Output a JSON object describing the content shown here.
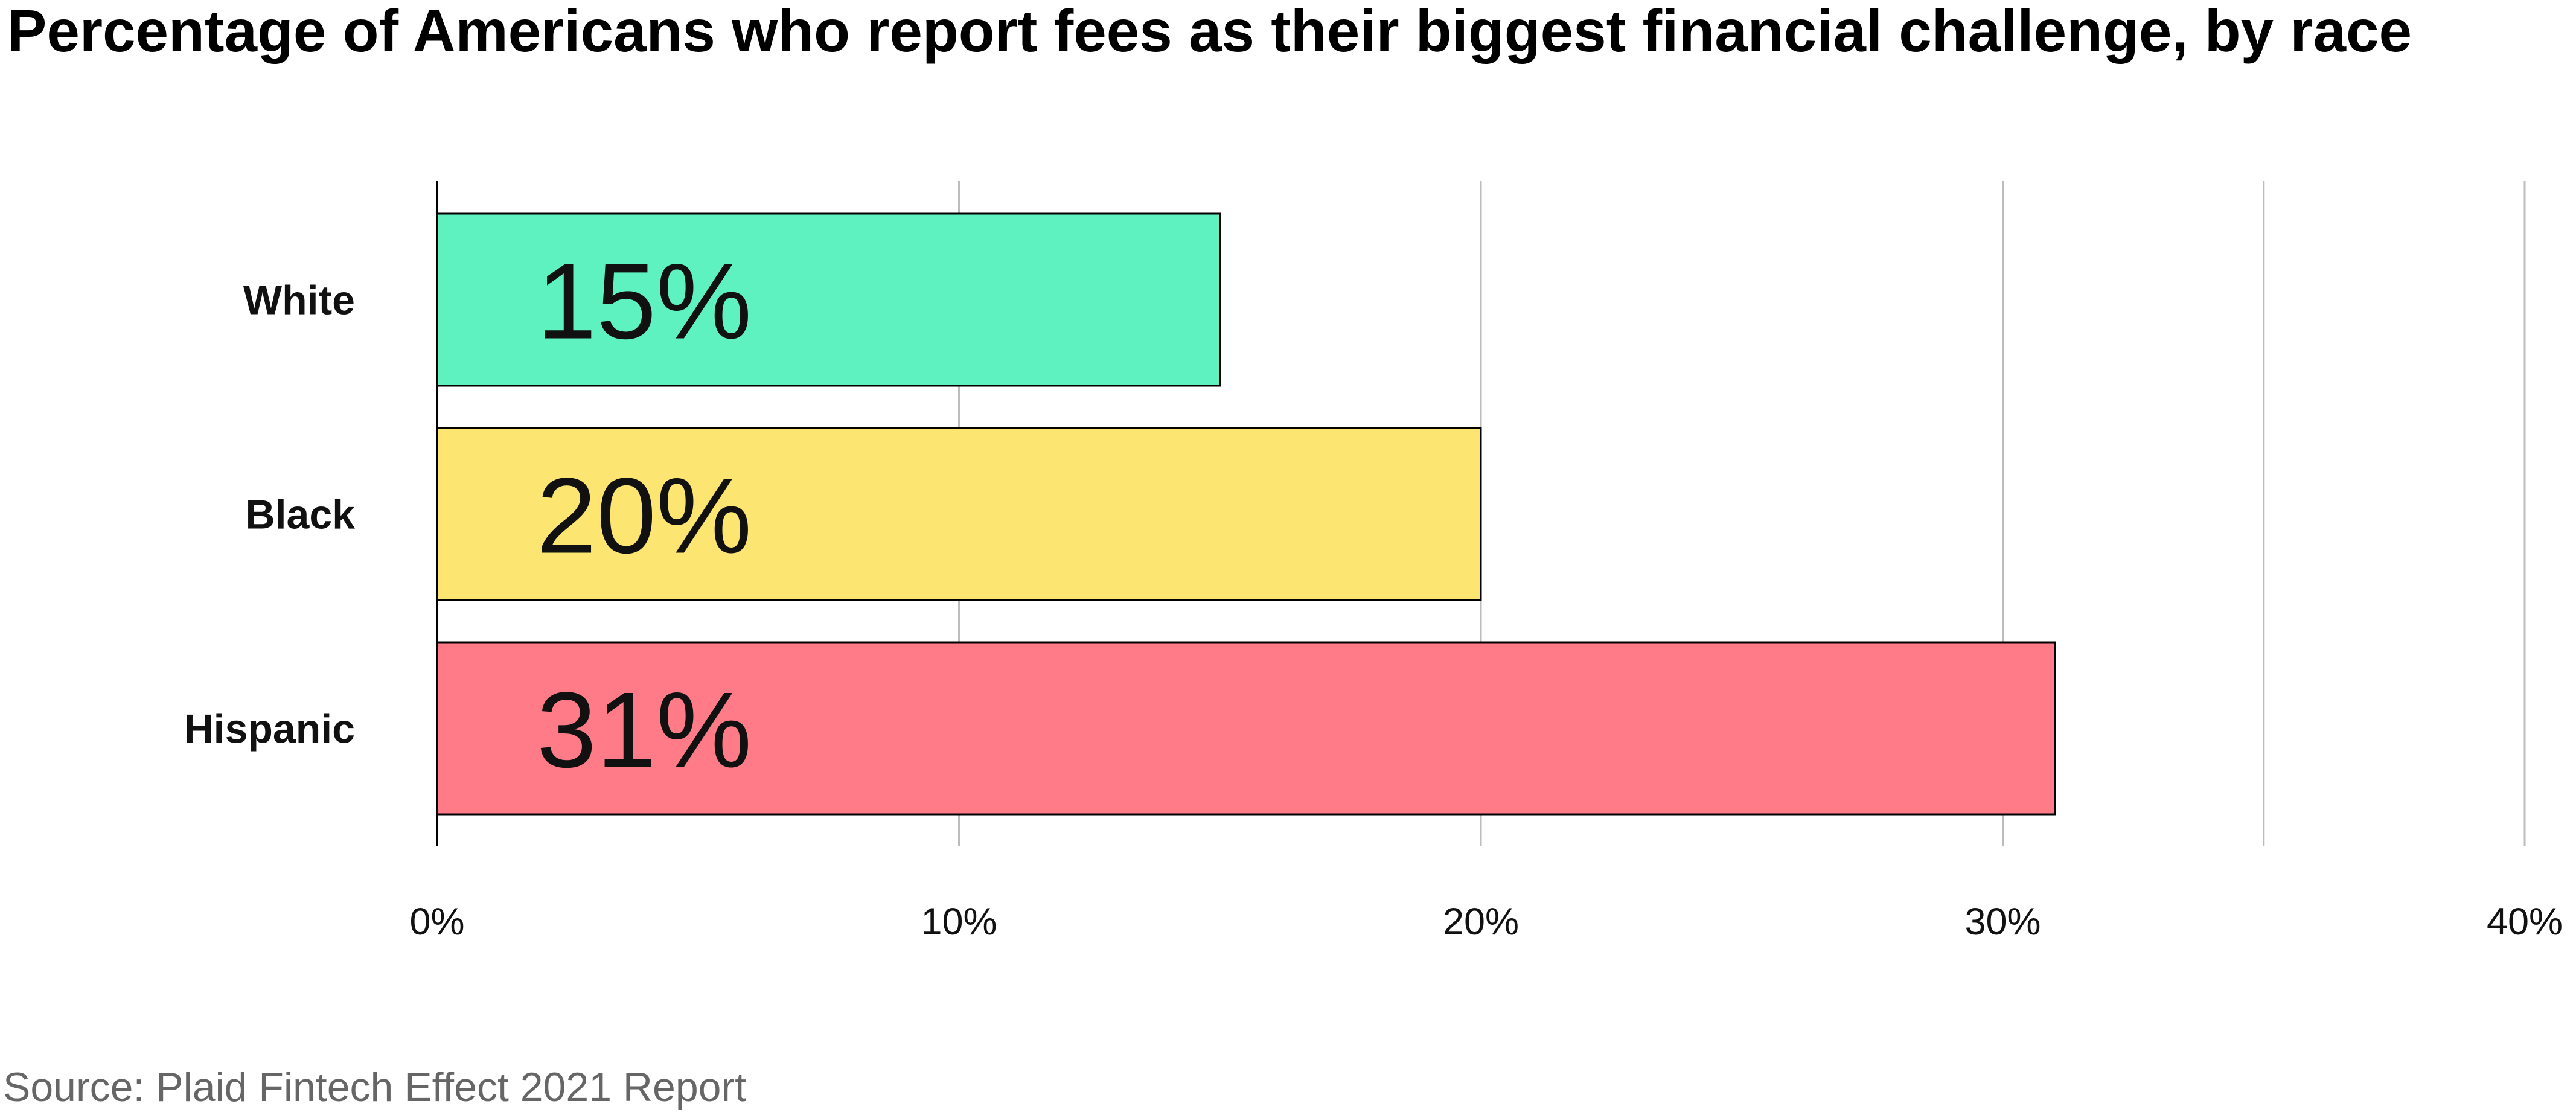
{
  "chart_data": {
    "type": "bar",
    "orientation": "horizontal",
    "title": "Percentage of Americans who report fees as their biggest financial challenge, by race",
    "source": "Source: Plaid Fintech Effect 2021 Report",
    "categories": [
      "White",
      "Black",
      "Hispanic"
    ],
    "values": [
      15,
      20,
      31
    ],
    "data_labels": [
      "15%",
      "20%",
      "31%"
    ],
    "colors": [
      "#5EF2C0",
      "#FCE570",
      "#FF7B87"
    ],
    "xlim": [
      0,
      40
    ],
    "ticks": [
      0,
      10,
      20,
      30,
      40
    ],
    "tick_labels": [
      "0%",
      "10%",
      "20%",
      "30%",
      "40%"
    ],
    "gridlines": [
      10,
      20,
      30,
      35,
      40
    ],
    "grid": true,
    "xlabel": "",
    "ylabel": ""
  }
}
